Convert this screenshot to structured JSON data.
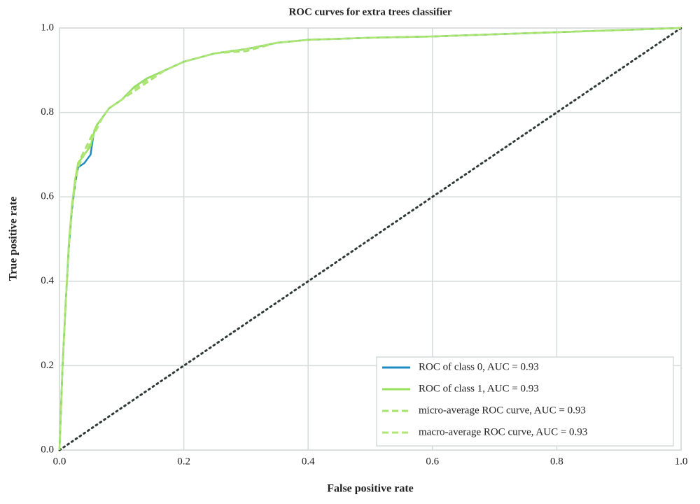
{
  "chart_data": {
    "type": "line",
    "title": "ROC curves for extra trees classifier",
    "xlabel": "False positive rate",
    "ylabel": "True positive rate",
    "xlim": [
      0,
      1
    ],
    "ylim": [
      0,
      1
    ],
    "xticks": [
      {
        "value": 0,
        "label": "0.0"
      },
      0.2,
      0.4,
      0.6,
      0.8,
      {
        "value": 1,
        "label": "1.0"
      }
    ],
    "yticks": [
      {
        "value": 0,
        "label": "0.0"
      },
      0.2,
      0.4,
      0.6,
      0.8,
      {
        "value": 1,
        "label": "1.0"
      }
    ],
    "grid": true,
    "legend": "lower right",
    "series": [
      {
        "name": "ROC of class 0, AUC = 0.93",
        "color": "#1f8bc3",
        "linestyle": "solid",
        "x": [
          0,
          0.005,
          0.01,
          0.015,
          0.02,
          0.025,
          0.03,
          0.04,
          0.05,
          0.055,
          0.06,
          0.07,
          0.08,
          0.1,
          0.12,
          0.14,
          0.17,
          0.2,
          0.25,
          0.3,
          0.35,
          0.4,
          0.5,
          0.6,
          0.7,
          0.8,
          0.9,
          1
        ],
        "values": [
          0,
          0.2,
          0.35,
          0.48,
          0.57,
          0.63,
          0.67,
          0.68,
          0.7,
          0.75,
          0.77,
          0.79,
          0.81,
          0.83,
          0.86,
          0.88,
          0.9,
          0.92,
          0.94,
          0.95,
          0.965,
          0.972,
          0.977,
          0.98,
          0.985,
          0.99,
          0.995,
          1
        ]
      },
      {
        "name": "ROC of class 1, AUC = 0.93",
        "color": "#98e05e",
        "linestyle": "solid",
        "x": [
          0,
          0.005,
          0.01,
          0.015,
          0.02,
          0.025,
          0.03,
          0.04,
          0.05,
          0.055,
          0.06,
          0.07,
          0.08,
          0.1,
          0.12,
          0.14,
          0.17,
          0.2,
          0.25,
          0.3,
          0.35,
          0.4,
          0.5,
          0.6,
          0.7,
          0.8,
          0.9,
          1
        ],
        "values": [
          0,
          0.2,
          0.35,
          0.49,
          0.58,
          0.64,
          0.68,
          0.7,
          0.72,
          0.75,
          0.77,
          0.79,
          0.81,
          0.83,
          0.86,
          0.88,
          0.9,
          0.92,
          0.94,
          0.95,
          0.965,
          0.972,
          0.977,
          0.98,
          0.985,
          0.99,
          0.995,
          1
        ]
      },
      {
        "name": "micro-average ROC curve, AUC = 0.93",
        "color": "#a6e36c",
        "linestyle": "dashed",
        "x": [
          0,
          0.005,
          0.01,
          0.015,
          0.02,
          0.025,
          0.03,
          0.04,
          0.05,
          0.06,
          0.07,
          0.08,
          0.1,
          0.12,
          0.14,
          0.17,
          0.2,
          0.25,
          0.3,
          0.35,
          0.4,
          0.5,
          0.6,
          0.7,
          0.8,
          0.9,
          1
        ],
        "values": [
          0,
          0.2,
          0.35,
          0.48,
          0.58,
          0.64,
          0.68,
          0.71,
          0.74,
          0.77,
          0.79,
          0.81,
          0.83,
          0.85,
          0.87,
          0.9,
          0.92,
          0.94,
          0.945,
          0.965,
          0.972,
          0.977,
          0.98,
          0.985,
          0.99,
          0.995,
          1
        ]
      },
      {
        "name": "macro-average ROC curve, AUC = 0.93",
        "color": "#b0e57a",
        "linestyle": "dashed",
        "x": [
          0,
          0.005,
          0.01,
          0.015,
          0.02,
          0.025,
          0.03,
          0.04,
          0.05,
          0.06,
          0.07,
          0.08,
          0.1,
          0.12,
          0.14,
          0.17,
          0.2,
          0.25,
          0.3,
          0.35,
          0.4,
          0.5,
          0.6,
          0.7,
          0.8,
          0.9,
          1
        ],
        "values": [
          0,
          0.2,
          0.35,
          0.48,
          0.57,
          0.63,
          0.67,
          0.7,
          0.73,
          0.76,
          0.79,
          0.81,
          0.83,
          0.855,
          0.875,
          0.9,
          0.92,
          0.94,
          0.95,
          0.965,
          0.972,
          0.977,
          0.98,
          0.985,
          0.99,
          0.995,
          1
        ]
      }
    ],
    "reference_line": {
      "color": "#2f3a36",
      "x": [
        0,
        1
      ],
      "values": [
        0,
        1
      ]
    }
  }
}
